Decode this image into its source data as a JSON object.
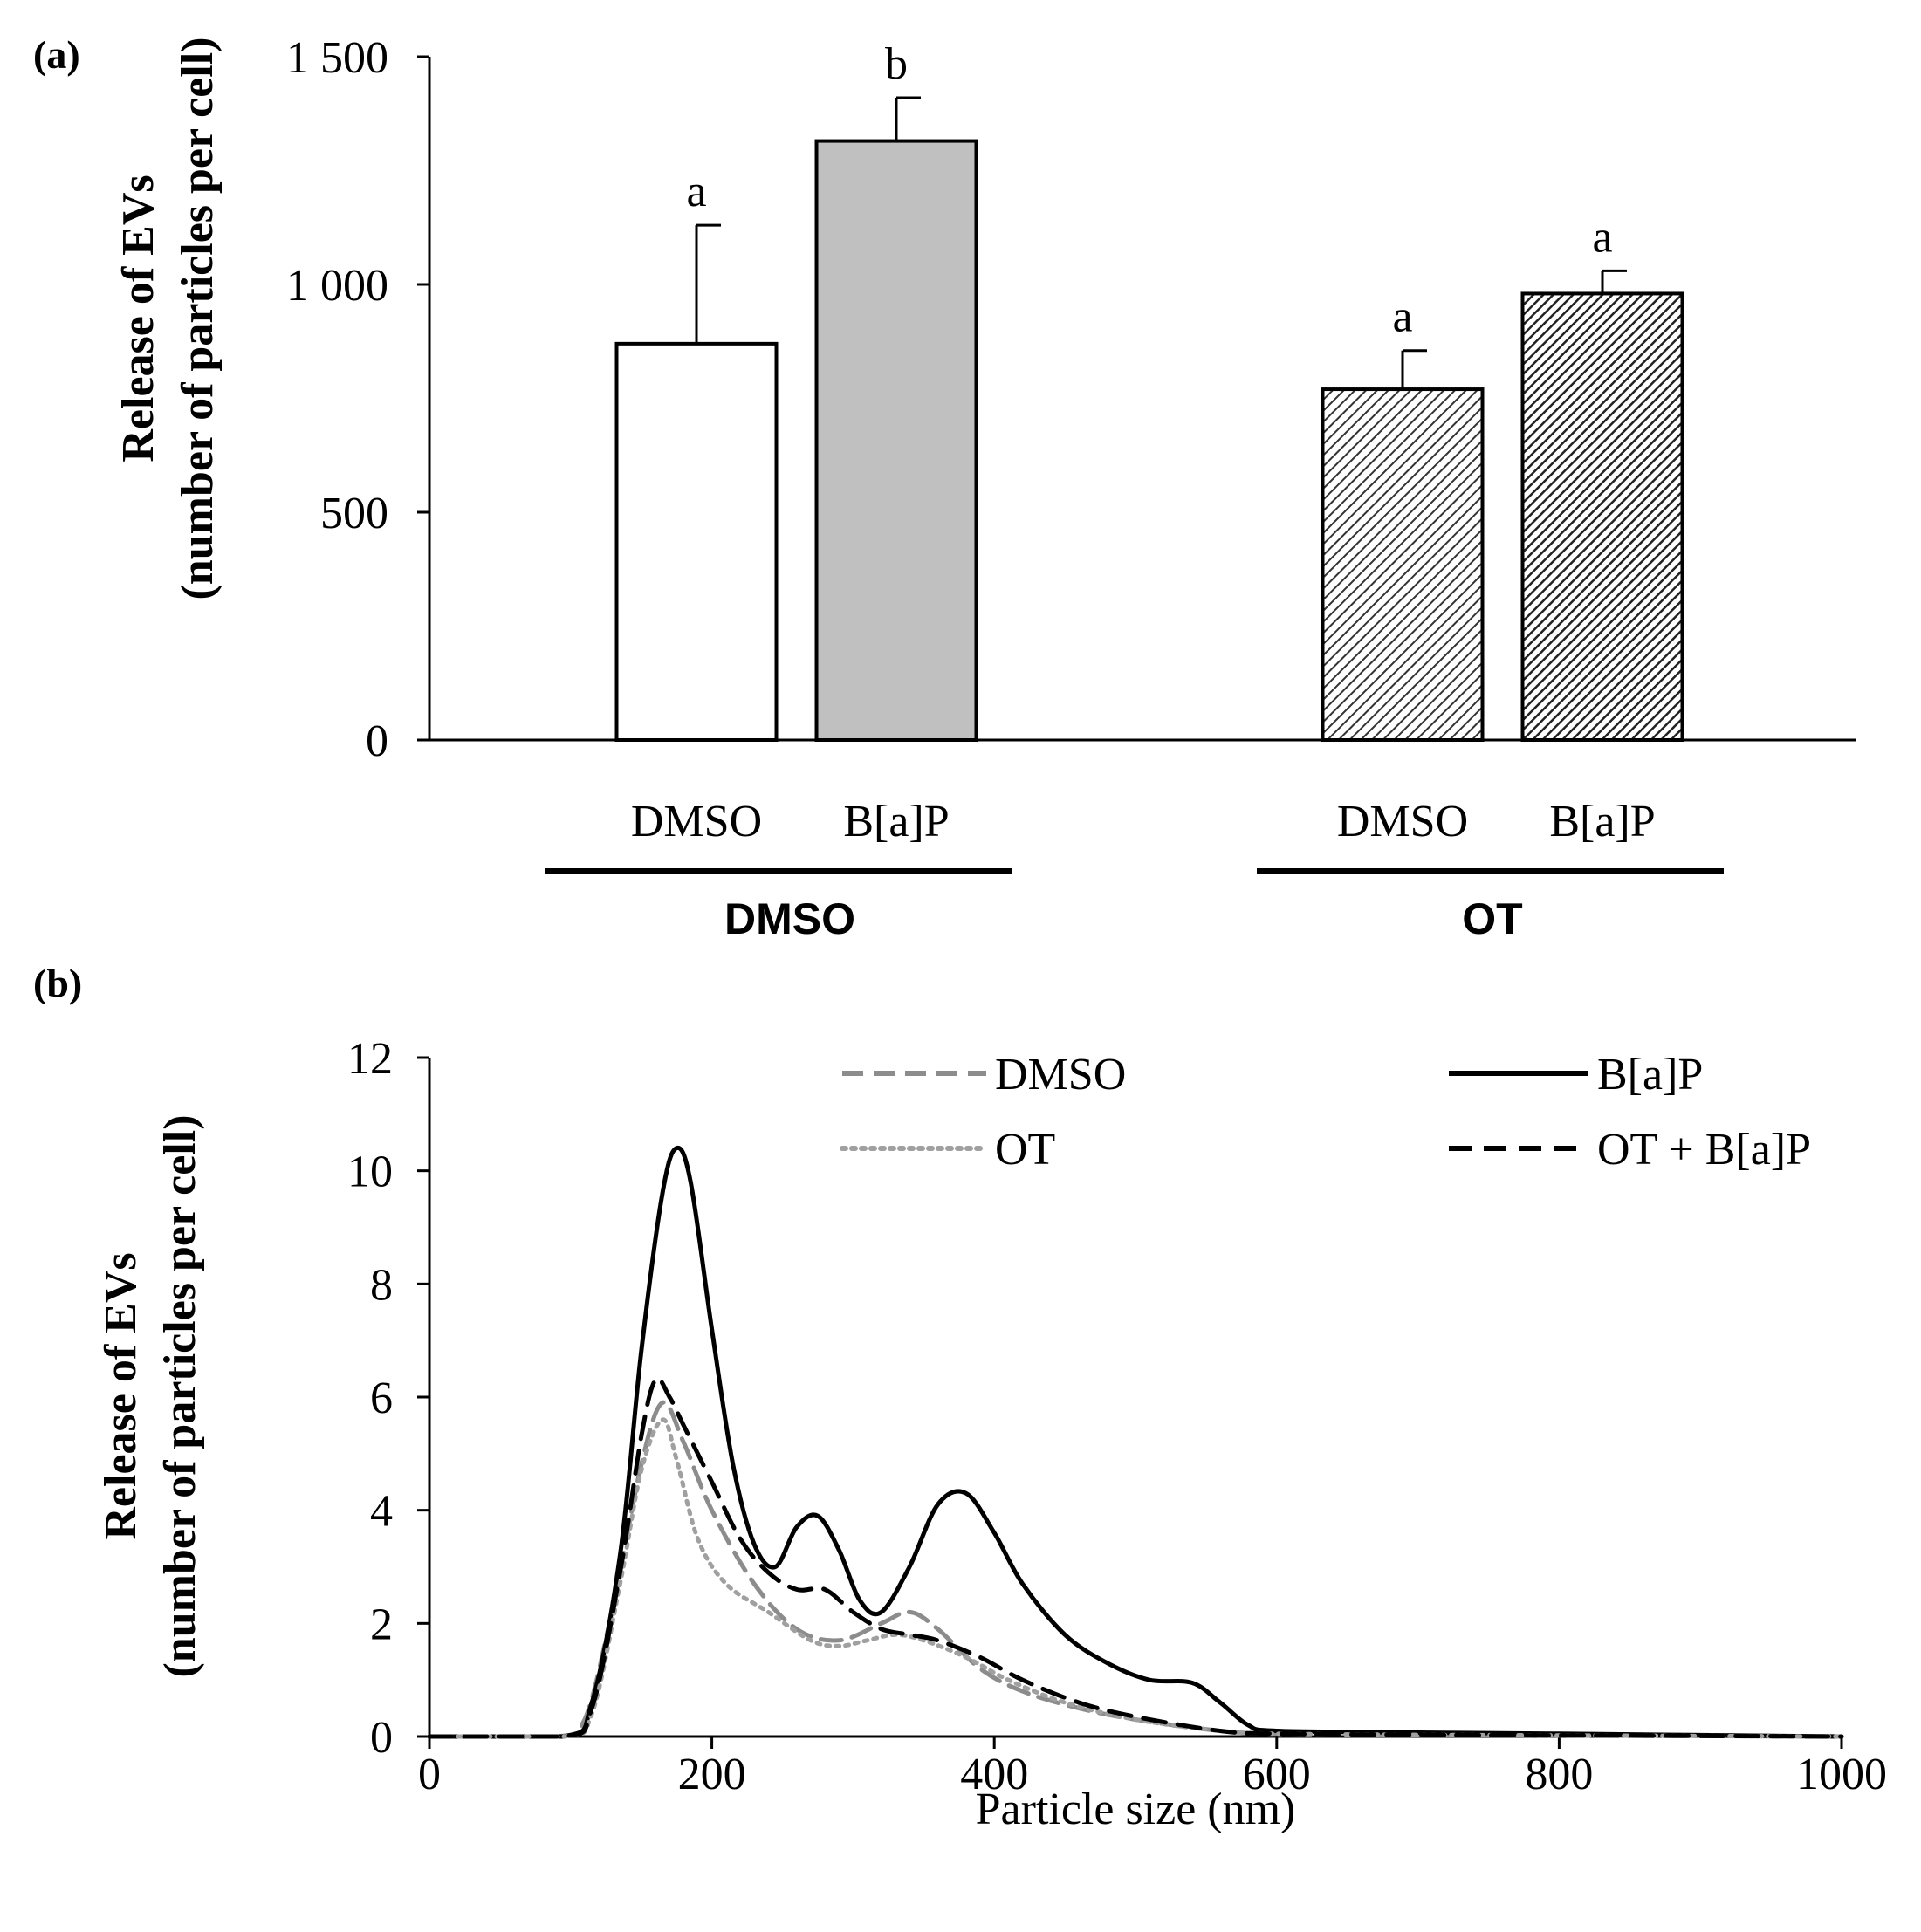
{
  "colors": {
    "axis": "#000000",
    "dmso_bar_fill": "#ffffff",
    "bap_bar_fill": "#c0c0c0",
    "ot_hatch": "#333333",
    "ot_bap_hatch": "#222222",
    "dmso_line": "#8c8c8c",
    "ot_line": "#a0a0a0",
    "bap_line": "#000000",
    "ot_bap_line": "#000000"
  },
  "chart_data": [
    {
      "type": "bar",
      "panel_label": "(a)",
      "ylabel_line1": "Release of EVs",
      "ylabel_line2": "(number of particles per cell)",
      "ylim": [
        0,
        1500
      ],
      "yticks": [
        0,
        500,
        1000,
        1500
      ],
      "ytick_labels": [
        "0",
        "500",
        "1 000",
        "1 500"
      ],
      "groups": [
        {
          "name": "DMSO",
          "bars": [
            {
              "label": "DMSO",
              "value": 870,
              "error": 260,
              "sig": "a",
              "fill": "white"
            },
            {
              "label": "B[a]P",
              "value": 1315,
              "error": 95,
              "sig": "b",
              "fill": "gray"
            }
          ]
        },
        {
          "name": "OT",
          "bars": [
            {
              "label": "DMSO",
              "value": 770,
              "error": 85,
              "sig": "a",
              "fill": "hatch-light"
            },
            {
              "label": "B[a]P",
              "value": 980,
              "error": 50,
              "sig": "a",
              "fill": "hatch-dark"
            }
          ]
        }
      ]
    },
    {
      "type": "line",
      "panel_label": "(b)",
      "xlabel": "Particle size (nm)",
      "ylabel_line1": "Release of EVs",
      "ylabel_line2": "(number of particles per cell)",
      "xlim": [
        0,
        1000
      ],
      "ylim": [
        0,
        12
      ],
      "xticks": [
        0,
        200,
        400,
        600,
        800,
        1000
      ],
      "yticks": [
        0,
        2,
        4,
        6,
        8,
        10,
        12
      ],
      "legend_position": "top",
      "series": [
        {
          "name": "DMSO",
          "style": "dashed-gray",
          "x": [
            0,
            90,
            110,
            130,
            150,
            165,
            180,
            200,
            230,
            260,
            290,
            320,
            340,
            360,
            390,
            420,
            460,
            500,
            560,
            600,
            700,
            800,
            1000
          ],
          "y": [
            0,
            0,
            0.3,
            2.3,
            4.8,
            5.9,
            5.2,
            4.0,
            2.7,
            1.9,
            1.7,
            2.0,
            2.2,
            1.9,
            1.2,
            0.8,
            0.5,
            0.3,
            0.1,
            0.05,
            0.03,
            0.02,
            0
          ]
        },
        {
          "name": "B[a]P",
          "style": "solid-black",
          "x": [
            0,
            95,
            115,
            135,
            150,
            165,
            175,
            185,
            200,
            215,
            230,
            245,
            260,
            275,
            290,
            305,
            320,
            340,
            360,
            380,
            400,
            420,
            450,
            480,
            510,
            540,
            560,
            580,
            600,
            700,
            800,
            1000
          ],
          "y": [
            0,
            0,
            0.6,
            3.2,
            6.8,
            9.6,
            10.4,
            9.8,
            7.2,
            4.8,
            3.4,
            3.0,
            3.7,
            3.9,
            3.3,
            2.4,
            2.2,
            3.0,
            4.1,
            4.3,
            3.6,
            2.7,
            1.8,
            1.3,
            1.0,
            0.95,
            0.6,
            0.2,
            0.1,
            0.07,
            0.05,
            0
          ]
        },
        {
          "name": "OT",
          "style": "dotted-gray",
          "x": [
            0,
            95,
            115,
            135,
            150,
            165,
            175,
            190,
            210,
            240,
            270,
            290,
            310,
            330,
            350,
            380,
            410,
            450,
            500,
            560,
            600,
            700,
            800,
            1000
          ],
          "y": [
            0,
            0,
            0.4,
            2.7,
            4.7,
            5.6,
            4.9,
            3.5,
            2.7,
            2.2,
            1.7,
            1.6,
            1.7,
            1.8,
            1.7,
            1.4,
            1.0,
            0.6,
            0.3,
            0.1,
            0.05,
            0.03,
            0.02,
            0
          ]
        },
        {
          "name": "OT + B[a]P",
          "style": "dashed-black",
          "x": [
            0,
            95,
            115,
            135,
            150,
            160,
            170,
            180,
            200,
            220,
            240,
            260,
            280,
            300,
            320,
            340,
            360,
            390,
            420,
            460,
            500,
            560,
            600,
            700,
            800,
            1000
          ],
          "y": [
            0,
            0,
            0.5,
            2.9,
            5.3,
            6.3,
            6.0,
            5.5,
            4.5,
            3.5,
            2.9,
            2.6,
            2.6,
            2.2,
            1.9,
            1.8,
            1.7,
            1.4,
            1.0,
            0.6,
            0.35,
            0.1,
            0.05,
            0.03,
            0.02,
            0
          ]
        }
      ]
    }
  ]
}
